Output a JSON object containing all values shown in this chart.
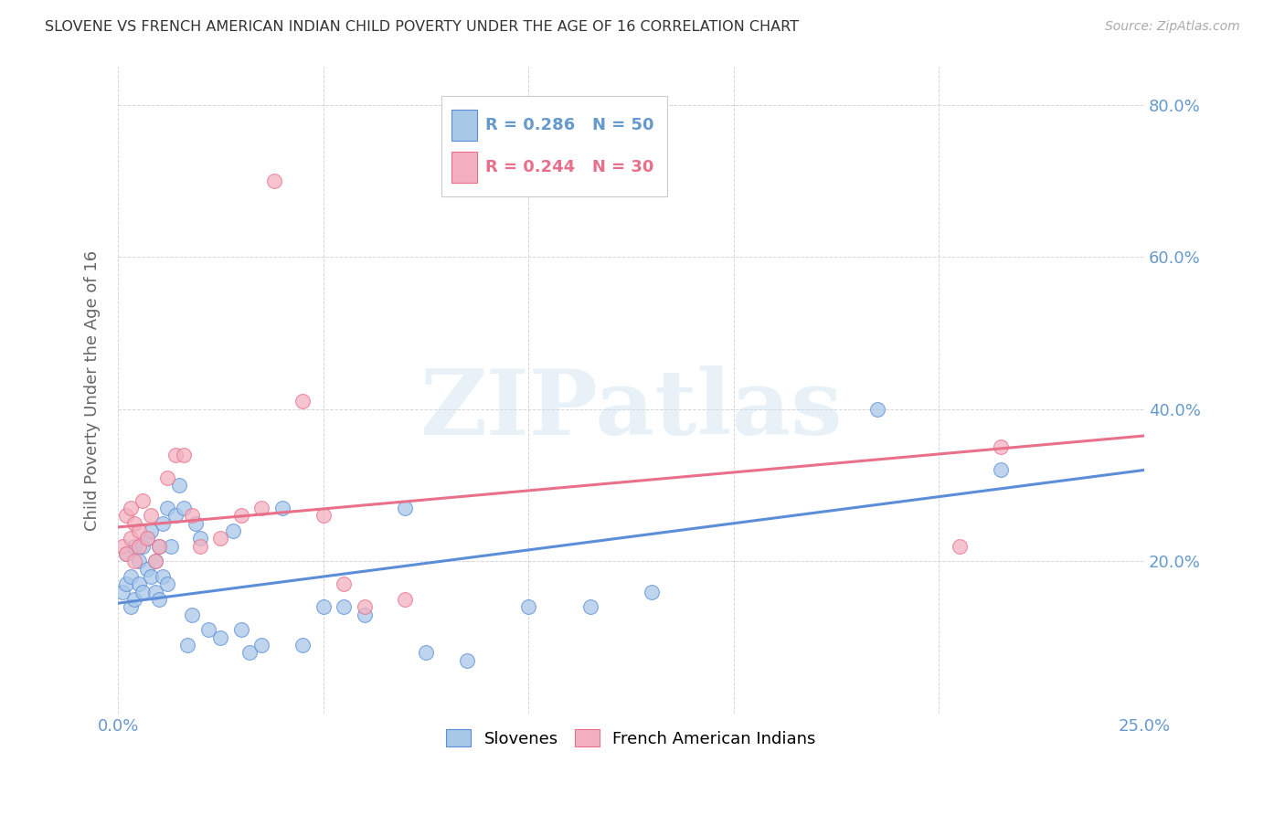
{
  "title": "SLOVENE VS FRENCH AMERICAN INDIAN CHILD POVERTY UNDER THE AGE OF 16 CORRELATION CHART",
  "source": "Source: ZipAtlas.com",
  "ylabel": "Child Poverty Under the Age of 16",
  "xlim": [
    0.0,
    0.25
  ],
  "ylim": [
    0.0,
    0.85
  ],
  "blue_R": 0.286,
  "blue_N": 50,
  "pink_R": 0.244,
  "pink_N": 30,
  "blue_color": "#a8c8e8",
  "pink_color": "#f4b0c0",
  "blue_line_color": "#5b8dd9",
  "pink_line_color": "#e8708a",
  "blue_label": "Slovenes",
  "pink_label": "French American Indians",
  "watermark": "ZIPatlas",
  "background_color": "#ffffff",
  "grid_color": "#cccccc",
  "title_color": "#333333",
  "axis_label_color": "#666666",
  "tick_label_color": "#6699cc",
  "blue_x": [
    0.001,
    0.002,
    0.002,
    0.003,
    0.003,
    0.004,
    0.004,
    0.005,
    0.005,
    0.006,
    0.006,
    0.007,
    0.007,
    0.008,
    0.008,
    0.009,
    0.009,
    0.01,
    0.01,
    0.011,
    0.011,
    0.012,
    0.012,
    0.013,
    0.014,
    0.015,
    0.016,
    0.017,
    0.018,
    0.019,
    0.02,
    0.022,
    0.025,
    0.028,
    0.03,
    0.032,
    0.035,
    0.04,
    0.045,
    0.05,
    0.055,
    0.06,
    0.07,
    0.075,
    0.085,
    0.1,
    0.115,
    0.13,
    0.185,
    0.215
  ],
  "blue_y": [
    0.16,
    0.17,
    0.21,
    0.14,
    0.18,
    0.15,
    0.22,
    0.17,
    0.2,
    0.16,
    0.22,
    0.19,
    0.23,
    0.18,
    0.24,
    0.16,
    0.2,
    0.15,
    0.22,
    0.18,
    0.25,
    0.17,
    0.27,
    0.22,
    0.26,
    0.3,
    0.27,
    0.09,
    0.13,
    0.25,
    0.23,
    0.11,
    0.1,
    0.24,
    0.11,
    0.08,
    0.09,
    0.27,
    0.09,
    0.14,
    0.14,
    0.13,
    0.27,
    0.08,
    0.07,
    0.14,
    0.14,
    0.16,
    0.4,
    0.32
  ],
  "pink_x": [
    0.001,
    0.002,
    0.002,
    0.003,
    0.003,
    0.004,
    0.004,
    0.005,
    0.005,
    0.006,
    0.007,
    0.008,
    0.009,
    0.01,
    0.012,
    0.014,
    0.016,
    0.018,
    0.02,
    0.025,
    0.03,
    0.035,
    0.038,
    0.045,
    0.05,
    0.055,
    0.06,
    0.07,
    0.205,
    0.215
  ],
  "pink_y": [
    0.22,
    0.21,
    0.26,
    0.23,
    0.27,
    0.2,
    0.25,
    0.22,
    0.24,
    0.28,
    0.23,
    0.26,
    0.2,
    0.22,
    0.31,
    0.34,
    0.34,
    0.26,
    0.22,
    0.23,
    0.26,
    0.27,
    0.7,
    0.41,
    0.26,
    0.17,
    0.14,
    0.15,
    0.22,
    0.35
  ],
  "blue_line_x0": 0.0,
  "blue_line_y0": 0.145,
  "blue_line_x1": 0.25,
  "blue_line_y1": 0.32,
  "pink_line_x0": 0.0,
  "pink_line_y0": 0.245,
  "pink_line_x1": 0.25,
  "pink_line_y1": 0.365
}
